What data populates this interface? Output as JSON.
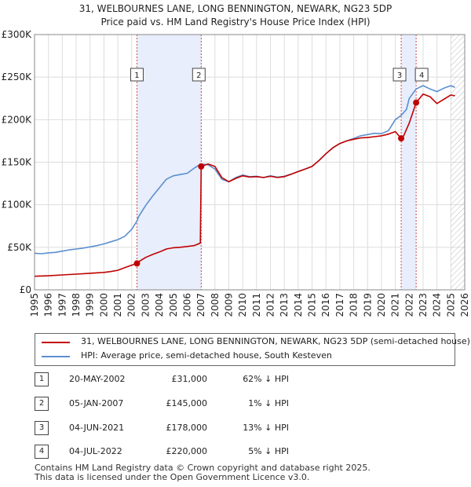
{
  "chart_data": {
    "type": "line",
    "title": "31, WELBOURNES LANE, LONG BENNINGTON, NEWARK, NG23 5DP",
    "subtitle": "Price paid vs. HM Land Registry's House Price Index (HPI)",
    "x_ticks": [
      "1995",
      "1996",
      "1997",
      "1998",
      "1999",
      "2000",
      "2001",
      "2002",
      "2003",
      "2004",
      "2005",
      "2006",
      "2007",
      "2008",
      "2009",
      "2010",
      "2011",
      "2012",
      "2013",
      "2014",
      "2015",
      "2016",
      "2017",
      "2018",
      "2019",
      "2020",
      "2021",
      "2022",
      "2023",
      "2024",
      "2025",
      "2026"
    ],
    "y_ticks": [
      "£0",
      "£50K",
      "£100K",
      "£150K",
      "£200K",
      "£250K",
      "£300K"
    ],
    "xlim": [
      1995,
      2026
    ],
    "ylim": [
      0,
      300000
    ],
    "series": [
      {
        "name": "HPI: Average price, semi-detached house, South Kesteven",
        "color": "#5b8fd0",
        "x": [
          1995,
          1995.5,
          1996,
          1996.5,
          1997,
          1997.5,
          1998,
          1998.5,
          1999,
          1999.5,
          2000,
          2000.5,
          2001,
          2001.5,
          2002,
          2002.38,
          2002.5,
          2003,
          2003.5,
          2004,
          2004.5,
          2005,
          2005.5,
          2006,
          2006.5,
          2007,
          2007.5,
          2008,
          2008.5,
          2009,
          2009.5,
          2010,
          2010.5,
          2011,
          2011.5,
          2012,
          2012.5,
          2013,
          2013.5,
          2014,
          2014.5,
          2015,
          2015.5,
          2016,
          2016.5,
          2017,
          2017.5,
          2018,
          2018.5,
          2019,
          2019.5,
          2020,
          2020.5,
          2021,
          2021.42,
          2021.8,
          2022,
          2022.5,
          2023,
          2023.5,
          2024,
          2024.5,
          2025,
          2025.3
        ],
        "y": [
          43000,
          42500,
          43500,
          44000,
          45500,
          47000,
          48000,
          49000,
          50500,
          52000,
          54000,
          56500,
          59000,
          63000,
          71000,
          81000,
          86000,
          99000,
          110000,
          120000,
          130000,
          134000,
          135500,
          137000,
          143000,
          148000,
          147000,
          142000,
          130000,
          127000,
          132000,
          135000,
          133000,
          133500,
          132000,
          134000,
          132500,
          133500,
          136000,
          139000,
          142000,
          145000,
          152000,
          160000,
          167000,
          172000,
          175000,
          178000,
          181000,
          182500,
          184000,
          183500,
          187000,
          200000,
          205000,
          212000,
          225000,
          236000,
          240000,
          236000,
          233000,
          237000,
          240000,
          238000
        ]
      },
      {
        "name": "31, WELBOURNES LANE, LONG BENNINGTON, NEWARK, NG23 5DP (semi-detached house)",
        "color": "#c00000",
        "x": [
          1995,
          1996,
          1997,
          1998,
          1999,
          2000,
          2000.5,
          2001,
          2001.5,
          2002,
          2002.38,
          2002.5,
          2003,
          2003.5,
          2004,
          2004.5,
          2005,
          2005.5,
          2006,
          2006.5,
          2006.95,
          2007.01,
          2007.5,
          2008,
          2008.5,
          2009,
          2009.5,
          2010,
          2010.5,
          2011,
          2011.5,
          2012,
          2012.5,
          2013,
          2013.5,
          2014,
          2014.5,
          2015,
          2015.5,
          2016,
          2016.5,
          2017,
          2017.5,
          2018,
          2018.5,
          2019,
          2019.5,
          2020,
          2020.5,
          2021,
          2021.42,
          2021.6,
          2022,
          2022.5,
          2023,
          2023.5,
          2024,
          2024.5,
          2025,
          2025.3
        ],
        "y": [
          16000,
          16500,
          17500,
          18500,
          19500,
          20500,
          21500,
          23000,
          26000,
          29000,
          31000,
          33000,
          38000,
          41500,
          44500,
          48000,
          49500,
          50000,
          51000,
          52000,
          55000,
          145000,
          148000,
          145000,
          132000,
          127000,
          131000,
          134000,
          132500,
          133000,
          132000,
          133500,
          132000,
          133000,
          136000,
          139000,
          142000,
          145000,
          152000,
          160000,
          167000,
          172000,
          175000,
          177000,
          178500,
          179000,
          180000,
          181000,
          183000,
          186000,
          178000,
          181000,
          196000,
          220000,
          230000,
          227000,
          219000,
          224000,
          229000,
          228000
        ]
      }
    ],
    "sales": [
      {
        "num": "1",
        "date": "20-MAY-2002",
        "x": 2002.38,
        "price": 31000,
        "price_label": "£31,000",
        "hpi_label": "62% ↓ HPI"
      },
      {
        "num": "2",
        "date": "05-JAN-2007",
        "x": 2007.01,
        "price": 145000,
        "price_label": "£145,000",
        "hpi_label": "1% ↓ HPI"
      },
      {
        "num": "3",
        "date": "04-JUN-2021",
        "x": 2021.42,
        "price": 178000,
        "price_label": "£178,000",
        "hpi_label": "13% ↓ HPI"
      },
      {
        "num": "4",
        "date": "04-JUL-2022",
        "x": 2022.5,
        "price": 220000,
        "price_label": "£220,000",
        "hpi_label": "5% ↓ HPI"
      }
    ],
    "highlight_periods": [
      [
        2002.38,
        2007.01
      ],
      [
        2021.42,
        2022.5
      ]
    ],
    "future_hatch_from": 2025.0
  },
  "legend": {
    "property": "31, WELBOURNES LANE, LONG BENNINGTON, NEWARK, NG23 5DP (semi-detached house)",
    "hpi": "HPI: Average price, semi-detached house, South Kesteven"
  },
  "colors": {
    "property": "#c00000",
    "hpi": "#5b8fd0",
    "shade": "#e8eefb",
    "grid": "#dddddd"
  },
  "footer": {
    "line1": "Contains HM Land Registry data © Crown copyright and database right 2025.",
    "line2": "This data is licensed under the Open Government Licence v3.0."
  }
}
